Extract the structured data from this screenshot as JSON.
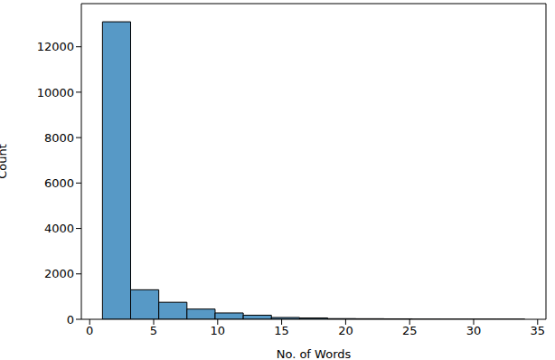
{
  "chart_data": {
    "type": "histogram",
    "x_label": "No. of Words",
    "y_label": "Count",
    "bins": [
      1,
      3.2,
      5.4,
      7.6,
      9.8,
      12,
      14.2,
      16.4,
      18.6,
      20.8,
      23,
      25.2,
      27.4,
      29.6,
      31.8,
      34
    ],
    "counts": [
      13100,
      1300,
      750,
      450,
      280,
      180,
      80,
      60,
      30,
      25,
      20,
      5,
      3,
      2,
      2
    ],
    "color": "#5799c6",
    "xlim": [
      -0.65,
      35.65
    ],
    "ylim": [
      0,
      13900
    ],
    "xticks": [
      0,
      5,
      10,
      15,
      20,
      25,
      30,
      35
    ],
    "yticks": [
      0,
      2000,
      4000,
      6000,
      8000,
      10000,
      12000
    ],
    "grid": false
  }
}
